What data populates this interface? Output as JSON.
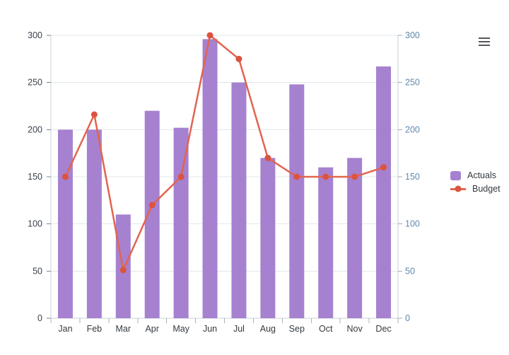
{
  "chart_data": {
    "type": "combo",
    "title": "",
    "categories": [
      "Jan",
      "Feb",
      "Mar",
      "Apr",
      "May",
      "Jun",
      "Jul",
      "Aug",
      "Sep",
      "Oct",
      "Nov",
      "Dec"
    ],
    "series": [
      {
        "name": "Actuals",
        "type": "bar",
        "color": "#a681d0",
        "values": [
          200,
          200,
          110,
          220,
          202,
          296,
          250,
          170,
          248,
          160,
          170,
          267
        ]
      },
      {
        "name": "Budget",
        "type": "line",
        "color": "#e2644e",
        "marker_color": "#dc5340",
        "values": [
          150,
          216,
          51,
          120,
          150,
          300,
          275,
          170,
          150,
          150,
          150,
          160
        ]
      }
    ],
    "xlabel": "",
    "ylabel": "",
    "ylim": [
      0,
      300
    ],
    "ytick_step": 50,
    "yticks_left": [
      "0",
      "50",
      "100",
      "150",
      "200",
      "250",
      "300"
    ],
    "yticks_right": [
      "0",
      "50",
      "100",
      "150",
      "200",
      "250",
      "300"
    ],
    "grid": true,
    "legend_position": "right",
    "colors": {
      "grid_line": "#e2e7eb",
      "axis_line": "#c9d1d6",
      "tick_left": "#7e868d",
      "tick_right": "#9aa9b8",
      "tick_x": "#a9b1b7",
      "label_left": "#38424d",
      "label_right": "#6288ab",
      "label_x": "#333a40"
    }
  },
  "menu": {
    "tooltip": "Menu"
  }
}
